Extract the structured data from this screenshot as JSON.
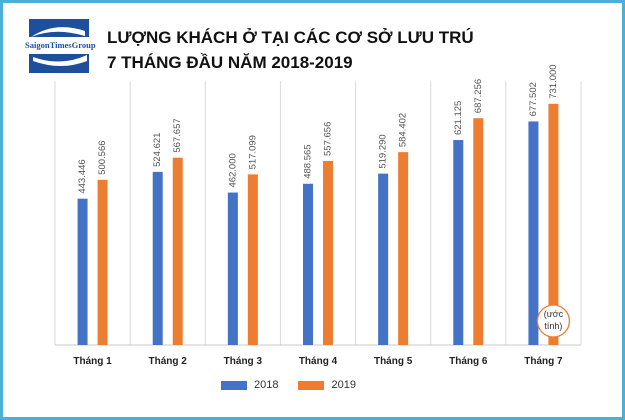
{
  "brand": {
    "logo_text": "SaigonTimesGroup"
  },
  "colors": {
    "blue": "#4472C4",
    "orange": "#ED7D31",
    "grid": "#d9d9d9"
  },
  "chart_data": {
    "type": "bar",
    "title_line1": "LƯỢNG KHÁCH Ở TẠI CÁC CƠ SỞ LƯU TRÚ",
    "title_line2": "7 THÁNG ĐẦU NĂM 2018-2019",
    "categories": [
      "Tháng 1",
      "Tháng 2",
      "Tháng 3",
      "Tháng 4",
      "Tháng 5",
      "Tháng 6",
      "Tháng 7"
    ],
    "series": [
      {
        "name": "2018",
        "values": [
          443446,
          524621,
          462000,
          488565,
          519290,
          621125,
          677502
        ],
        "labels": [
          "443.446",
          "524.621",
          "462.000",
          "488.565",
          "519.290",
          "621.125",
          "677.502"
        ]
      },
      {
        "name": "2019",
        "values": [
          500566,
          567657,
          517099,
          557656,
          584402,
          687256,
          731000
        ],
        "labels": [
          "500.566",
          "567.657",
          "517.099",
          "557.656",
          "584.402",
          "687.256",
          "731.000"
        ]
      }
    ],
    "annotation": {
      "line1": "(ước",
      "line2": "tính)"
    },
    "ylim": [
      0,
      800000
    ],
    "grid": "vertical-separators",
    "legend_position": "bottom"
  }
}
